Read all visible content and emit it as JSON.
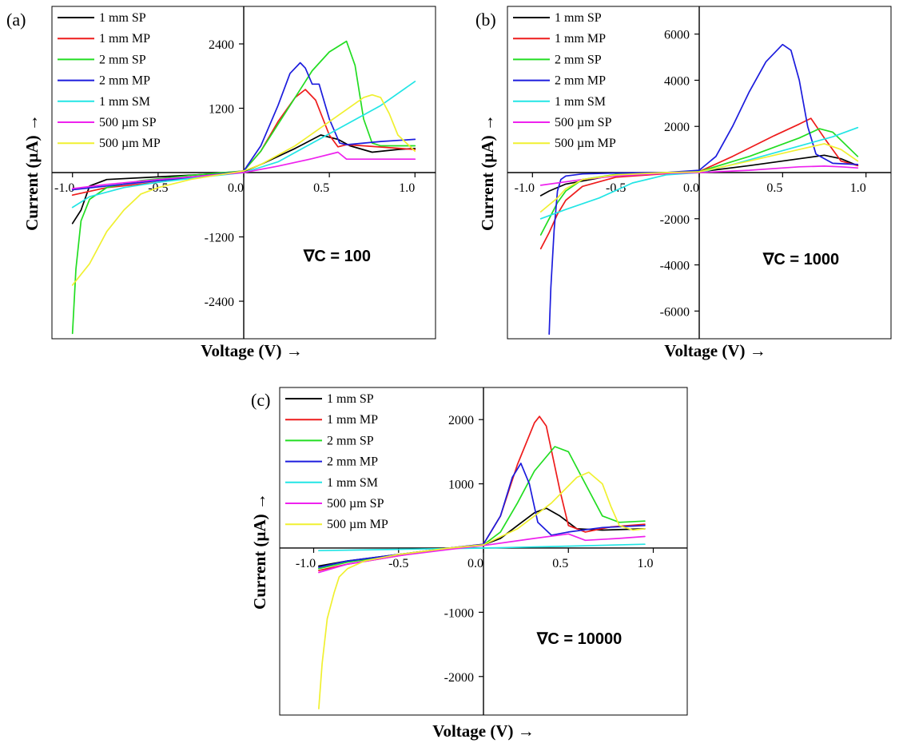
{
  "series_names": [
    "1 mm SP",
    "1 mm MP",
    "2 mm SP",
    "2 mm MP",
    "1 mm SM",
    "500 µm SP",
    "500 µm MP"
  ],
  "series_colors": [
    "#000000",
    "#ee1c1c",
    "#22dd22",
    "#1c1cdd",
    "#22e5e5",
    "#ee22ee",
    "#f0f030"
  ],
  "chart_data": [
    {
      "panel_label": "(a)",
      "type": "line",
      "xlabel": "Voltage (V) →",
      "ylabel": "Current (µA) →",
      "annotation": "∇C = 100",
      "xlim": [
        -1.12,
        1.12
      ],
      "ylim": [
        -3100,
        3100
      ],
      "xticks": [
        -1.0,
        -0.5,
        0.0,
        0.5,
        1.0
      ],
      "xtick_labels": [
        "-1.0",
        "-0.5",
        "0.0",
        "0.5",
        "1.0"
      ],
      "yticks": [
        -2400,
        -1200,
        1200,
        2400
      ],
      "ytick_labels": [
        "-2400",
        "-1200",
        "1200",
        "2400"
      ],
      "series": [
        {
          "name": "1 mm SP",
          "x": [
            -1.0,
            -0.95,
            -0.9,
            -0.8,
            -0.5,
            -0.2,
            0.0,
            0.1,
            0.3,
            0.45,
            0.55,
            0.62,
            0.75,
            0.9,
            1.0
          ],
          "y": [
            -950,
            -700,
            -250,
            -130,
            -80,
            -30,
            20,
            150,
            450,
            700,
            620,
            500,
            380,
            430,
            450
          ]
        },
        {
          "name": "1 mm MP",
          "x": [
            -1.0,
            -0.8,
            -0.5,
            -0.2,
            0.0,
            0.1,
            0.2,
            0.3,
            0.36,
            0.42,
            0.5,
            0.55,
            0.6,
            0.7,
            1.0
          ],
          "y": [
            -420,
            -280,
            -180,
            -50,
            30,
            400,
            950,
            1400,
            1550,
            1350,
            700,
            480,
            520,
            500,
            430
          ]
        },
        {
          "name": "2 mm SP",
          "x": [
            -1.0,
            -0.98,
            -0.95,
            -0.9,
            -0.8,
            -0.6,
            -0.3,
            0.0,
            0.1,
            0.2,
            0.3,
            0.4,
            0.5,
            0.6,
            0.65,
            0.7,
            0.75,
            0.8,
            1.0
          ],
          "y": [
            -3000,
            -1800,
            -900,
            -500,
            -280,
            -150,
            -50,
            30,
            400,
            900,
            1400,
            1900,
            2250,
            2450,
            2000,
            1000,
            550,
            500,
            500
          ]
        },
        {
          "name": "2 mm MP",
          "x": [
            -1.0,
            -0.8,
            -0.5,
            -0.2,
            0.0,
            0.1,
            0.2,
            0.27,
            0.33,
            0.36,
            0.4,
            0.44,
            0.5,
            0.56,
            0.6,
            0.8,
            1.0
          ],
          "y": [
            -320,
            -250,
            -150,
            -50,
            30,
            500,
            1250,
            1850,
            2050,
            1950,
            1650,
            1650,
            1000,
            550,
            520,
            580,
            620
          ]
        },
        {
          "name": "1 mm SM",
          "x": [
            -1.0,
            -0.9,
            -0.7,
            -0.5,
            -0.2,
            0.0,
            0.2,
            0.4,
            0.6,
            0.8,
            1.0
          ],
          "y": [
            -650,
            -450,
            -280,
            -180,
            -70,
            0,
            200,
            550,
            900,
            1250,
            1700
          ]
        },
        {
          "name": "500 µm SP",
          "x": [
            -1.0,
            -0.8,
            -0.5,
            -0.2,
            0.0,
            0.2,
            0.4,
            0.55,
            0.6,
            0.7,
            1.0
          ],
          "y": [
            -300,
            -220,
            -130,
            -50,
            0,
            120,
            260,
            380,
            250,
            250,
            250
          ]
        },
        {
          "name": "500 µm MP",
          "x": [
            -1.0,
            -0.95,
            -0.9,
            -0.85,
            -0.8,
            -0.7,
            -0.6,
            -0.5,
            -0.3,
            0.0,
            0.1,
            0.3,
            0.5,
            0.7,
            0.75,
            0.8,
            0.85,
            0.9,
            0.95,
            1.0
          ],
          "y": [
            -2100,
            -1900,
            -1700,
            -1400,
            -1100,
            -700,
            -400,
            -280,
            -120,
            30,
            150,
            500,
            950,
            1400,
            1450,
            1400,
            1100,
            700,
            550,
            400
          ]
        }
      ]
    },
    {
      "panel_label": "(b)",
      "type": "line",
      "xlabel": "Voltage (V) →",
      "ylabel": "Current (µA) →",
      "annotation": "∇C = 1000",
      "xlim": [
        -1.15,
        1.15
      ],
      "ylim": [
        -7200,
        7200
      ],
      "xticks": [
        -1.0,
        -0.5,
        0.0,
        0.5,
        1.0
      ],
      "xtick_labels": [
        "-1.0",
        "-0.5",
        "0.0",
        "0.5",
        "1.0"
      ],
      "yticks": [
        -6000,
        -4000,
        -2000,
        2000,
        4000,
        6000
      ],
      "ytick_labels": [
        "-6000",
        "-4000",
        "-2000",
        "2000",
        "4000",
        "6000"
      ],
      "series": [
        {
          "name": "1 mm SP",
          "x": [
            -0.95,
            -0.9,
            -0.8,
            -0.5,
            -0.2,
            0.0,
            0.3,
            0.6,
            0.75,
            0.85,
            0.95
          ],
          "y": [
            -1000,
            -800,
            -500,
            -100,
            0,
            30,
            300,
            600,
            750,
            600,
            300
          ]
        },
        {
          "name": "1 mm MP",
          "x": [
            -0.95,
            -0.9,
            -0.85,
            -0.8,
            -0.7,
            -0.5,
            -0.2,
            0.0,
            0.2,
            0.45,
            0.6,
            0.67,
            0.75,
            0.85,
            0.95
          ],
          "y": [
            -3300,
            -2600,
            -1800,
            -1200,
            -600,
            -200,
            -50,
            40,
            700,
            1600,
            2100,
            2350,
            1500,
            500,
            300
          ]
        },
        {
          "name": "2 mm SP",
          "x": [
            -0.95,
            -0.9,
            -0.85,
            -0.8,
            -0.7,
            -0.5,
            -0.2,
            0.0,
            0.3,
            0.6,
            0.72,
            0.8,
            0.95
          ],
          "y": [
            -2700,
            -2000,
            -1300,
            -800,
            -300,
            -80,
            0,
            40,
            700,
            1500,
            1900,
            1750,
            700
          ]
        },
        {
          "name": "2 mm MP",
          "x": [
            -0.9,
            -0.89,
            -0.87,
            -0.85,
            -0.83,
            -0.8,
            -0.7,
            -0.5,
            -0.2,
            0.0,
            0.1,
            0.2,
            0.3,
            0.4,
            0.5,
            0.55,
            0.6,
            0.65,
            0.7,
            0.8,
            0.95
          ],
          "y": [
            -7000,
            -5000,
            -2500,
            -800,
            -300,
            -150,
            -60,
            -20,
            0,
            100,
            700,
            2000,
            3500,
            4800,
            5550,
            5300,
            4000,
            2000,
            800,
            400,
            350
          ]
        },
        {
          "name": "1 mm SM",
          "x": [
            -0.95,
            -0.8,
            -0.6,
            -0.4,
            -0.2,
            0.0,
            0.2,
            0.4,
            0.6,
            0.8,
            0.95
          ],
          "y": [
            -2000,
            -1600,
            -1100,
            -450,
            -100,
            0,
            350,
            750,
            1150,
            1550,
            1950
          ]
        },
        {
          "name": "500 µm SP",
          "x": [
            -0.95,
            -0.7,
            -0.5,
            -0.2,
            0.0,
            0.3,
            0.6,
            0.75,
            0.85,
            0.95
          ],
          "y": [
            -550,
            -300,
            -150,
            -30,
            0,
            100,
            250,
            280,
            250,
            200
          ]
        },
        {
          "name": "500 µm MP",
          "x": [
            -0.95,
            -0.9,
            -0.85,
            -0.8,
            -0.7,
            -0.5,
            -0.2,
            0.0,
            0.3,
            0.6,
            0.75,
            0.85,
            0.95
          ],
          "y": [
            -1700,
            -1400,
            -1100,
            -700,
            -300,
            -100,
            0,
            30,
            500,
            1000,
            1250,
            1000,
            500
          ]
        }
      ]
    },
    {
      "panel_label": "(c)",
      "type": "line",
      "xlabel": "Voltage (V) →",
      "ylabel": "Current (µA) →",
      "annotation": "∇C = 10000",
      "xlim": [
        -1.2,
        1.2
      ],
      "ylim": [
        -2600,
        2500
      ],
      "xticks": [
        -1.0,
        -0.5,
        0.0,
        0.5,
        1.0
      ],
      "xtick_labels": [
        "-1.0",
        "-0.5",
        "0.0",
        "0.5",
        "1.0"
      ],
      "yticks": [
        -2000,
        -1000,
        1000,
        2000
      ],
      "ytick_labels": [
        "-2000",
        "-1000",
        "1000",
        "2000"
      ],
      "series": [
        {
          "name": "1 mm SP",
          "x": [
            -0.97,
            -0.8,
            -0.5,
            -0.2,
            0.0,
            0.1,
            0.2,
            0.3,
            0.37,
            0.45,
            0.55,
            0.7,
            0.95
          ],
          "y": [
            -280,
            -200,
            -100,
            0,
            50,
            150,
            350,
            550,
            620,
            500,
            300,
            280,
            300
          ]
        },
        {
          "name": "1 mm MP",
          "x": [
            -0.97,
            -0.8,
            -0.5,
            -0.2,
            0.0,
            0.1,
            0.2,
            0.3,
            0.33,
            0.37,
            0.45,
            0.5,
            0.6,
            0.75,
            0.95
          ],
          "y": [
            -350,
            -250,
            -120,
            0,
            60,
            500,
            1300,
            1950,
            2050,
            1900,
            900,
            350,
            250,
            330,
            370
          ]
        },
        {
          "name": "2 mm SP",
          "x": [
            -0.97,
            -0.8,
            -0.5,
            -0.2,
            0.0,
            0.1,
            0.2,
            0.3,
            0.42,
            0.5,
            0.6,
            0.7,
            0.8,
            0.95
          ],
          "y": [
            -320,
            -220,
            -110,
            0,
            50,
            250,
            700,
            1200,
            1580,
            1500,
            1000,
            500,
            400,
            420
          ]
        },
        {
          "name": "2 mm MP",
          "x": [
            -0.97,
            -0.8,
            -0.5,
            -0.2,
            0.0,
            0.1,
            0.17,
            0.22,
            0.27,
            0.32,
            0.4,
            0.5,
            0.7,
            0.95
          ],
          "y": [
            -300,
            -200,
            -100,
            0,
            60,
            500,
            1100,
            1320,
            1000,
            400,
            200,
            250,
            320,
            350
          ]
        },
        {
          "name": "1 mm SM",
          "x": [
            -0.97,
            -0.5,
            0.0,
            0.5,
            0.95
          ],
          "y": [
            -40,
            -20,
            0,
            30,
            60
          ]
        },
        {
          "name": "500 µm SP",
          "x": [
            -0.97,
            -0.8,
            -0.5,
            -0.2,
            0.0,
            0.3,
            0.5,
            0.6,
            0.8,
            0.95
          ],
          "y": [
            -380,
            -250,
            -120,
            -20,
            40,
            150,
            220,
            120,
            150,
            180
          ]
        },
        {
          "name": "500 µm MP",
          "x": [
            -0.97,
            -0.95,
            -0.92,
            -0.88,
            -0.85,
            -0.8,
            -0.7,
            -0.5,
            -0.2,
            0.0,
            0.2,
            0.4,
            0.55,
            0.62,
            0.7,
            0.75,
            0.8,
            0.88,
            0.95
          ],
          "y": [
            -2500,
            -1800,
            -1100,
            -700,
            -450,
            -320,
            -200,
            -100,
            0,
            50,
            300,
            700,
            1100,
            1180,
            1000,
            650,
            350,
            280,
            300
          ]
        }
      ]
    }
  ]
}
